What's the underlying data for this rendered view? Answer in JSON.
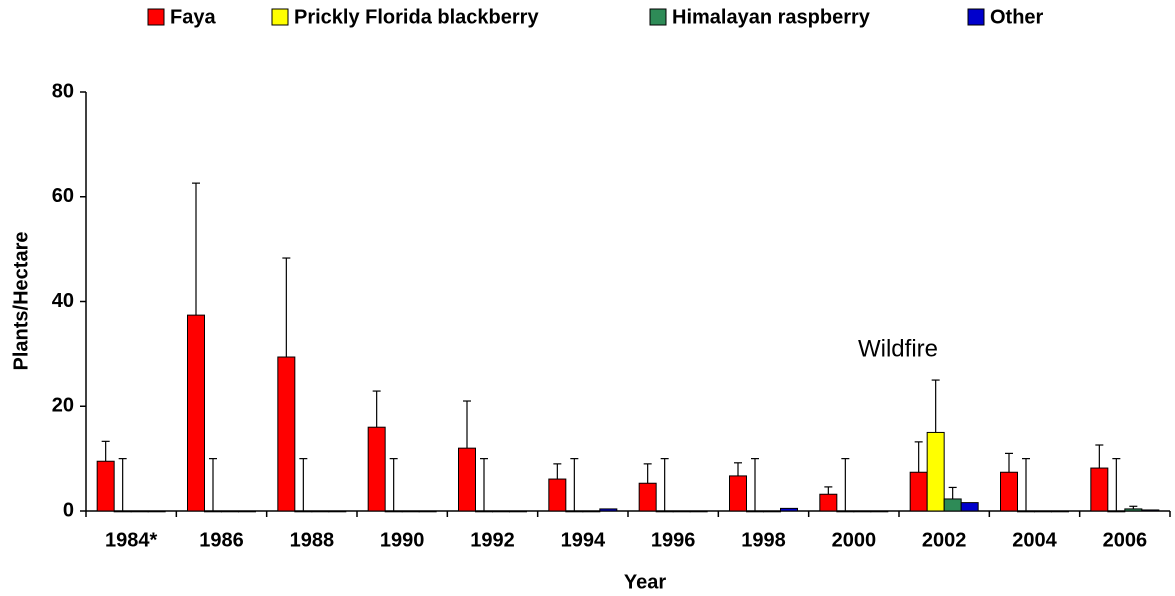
{
  "chart_data": {
    "type": "bar",
    "x_label": "Year",
    "y_label": "Plants/Hectare",
    "annotation": "Wildfire",
    "categories": [
      "1984*",
      "1986",
      "1988",
      "1990",
      "1992",
      "1994",
      "1996",
      "1998",
      "2000",
      "2002",
      "2004",
      "2006"
    ],
    "series": [
      {
        "name": "Faya",
        "color": "#ff0000",
        "values": [
          9.5,
          37.4,
          29.4,
          16.0,
          12.0,
          6.1,
          5.3,
          6.7,
          3.2,
          7.4,
          7.4,
          8.2
        ],
        "errors": [
          3.8,
          25.2,
          18.9,
          6.9,
          9.0,
          2.9,
          3.7,
          2.5,
          1.4,
          5.8,
          3.6,
          4.4
        ]
      },
      {
        "name": "Prickly Florida blackberry",
        "color": "#ffff00",
        "values": [
          0,
          0,
          0,
          0,
          0,
          0,
          0,
          0,
          0,
          15,
          0,
          0
        ],
        "errors": [
          10,
          10,
          10,
          10,
          10,
          10,
          10,
          10,
          10,
          10,
          10,
          10
        ]
      },
      {
        "name": "Himalayan raspberry",
        "color": "#2e8b57",
        "values": [
          0,
          0,
          0,
          0,
          0,
          0,
          0,
          0,
          0,
          2.3,
          0,
          0.4
        ],
        "errors": [
          null,
          null,
          null,
          null,
          null,
          null,
          null,
          null,
          null,
          2.2,
          null,
          0.5
        ]
      },
      {
        "name": "Other",
        "color": "#0000cc",
        "values": [
          0,
          0,
          0,
          0,
          0,
          0.4,
          0,
          0.5,
          0,
          1.6,
          0,
          0.2
        ],
        "errors": [
          null,
          null,
          null,
          null,
          null,
          null,
          null,
          null,
          null,
          null,
          null,
          null
        ]
      }
    ],
    "ylim": [
      0,
      80
    ],
    "yticks": [
      0,
      20,
      40,
      60,
      80
    ],
    "legend": "top"
  }
}
